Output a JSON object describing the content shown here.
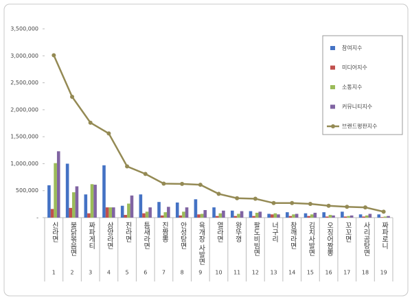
{
  "chart_data": {
    "type": "bar",
    "categories": [
      "신라면",
      "불닭볶음면",
      "짜파게티",
      "삼양라면",
      "진라면",
      "틈새라면",
      "진짬뽕",
      "안성탕면",
      "육개장 사발면",
      "열라면",
      "왕뚜껑",
      "팔도비빔면",
      "너구리",
      "참깨라면",
      "김치사발면",
      "오징어짬뽕",
      "꼬꼬면",
      "사리곰탕면",
      "짜파로니"
    ],
    "ranks": [
      1,
      2,
      3,
      4,
      5,
      6,
      7,
      8,
      9,
      10,
      11,
      12,
      13,
      14,
      15,
      16,
      17,
      18,
      19
    ],
    "series": [
      {
        "name": "참여지수",
        "color": "#4472c4",
        "values": [
          600000,
          1000000,
          430000,
          970000,
          220000,
          430000,
          290000,
          280000,
          340000,
          190000,
          130000,
          120000,
          70000,
          100000,
          80000,
          100000,
          110000,
          60000,
          60000
        ]
      },
      {
        "name": "미디어지수",
        "color": "#c0504d",
        "values": [
          160000,
          180000,
          80000,
          190000,
          50000,
          80000,
          40000,
          40000,
          60000,
          30000,
          30000,
          30000,
          60000,
          30000,
          30000,
          20000,
          20000,
          20000,
          10000
        ]
      },
      {
        "name": "소통지수",
        "color": "#9bbb59",
        "values": [
          1010000,
          470000,
          620000,
          190000,
          260000,
          110000,
          100000,
          110000,
          70000,
          80000,
          70000,
          90000,
          80000,
          60000,
          60000,
          50000,
          30000,
          40000,
          20000
        ]
      },
      {
        "name": "커뮤니티지수",
        "color": "#8064a2",
        "values": [
          1230000,
          580000,
          610000,
          190000,
          410000,
          190000,
          200000,
          190000,
          140000,
          130000,
          120000,
          110000,
          60000,
          70000,
          90000,
          40000,
          40000,
          70000,
          30000
        ]
      },
      {
        "name": "브랜드평판지수",
        "color": "#948a54",
        "type": "line",
        "values": [
          3010000,
          2240000,
          1760000,
          1560000,
          950000,
          810000,
          630000,
          625000,
          610000,
          440000,
          360000,
          350000,
          270000,
          270000,
          255000,
          220000,
          200000,
          190000,
          110000
        ]
      }
    ],
    "ylim": [
      0,
      3500000
    ],
    "yticks": [
      {
        "value": 0,
        "label": "-"
      },
      {
        "value": 500000,
        "label": "500,000"
      },
      {
        "value": 1000000,
        "label": "1,000,000"
      },
      {
        "value": 1500000,
        "label": "1,500,000"
      },
      {
        "value": 2000000,
        "label": "2,000,000"
      },
      {
        "value": 2500000,
        "label": "2,500,000"
      },
      {
        "value": 3000000,
        "label": "3,000,000"
      },
      {
        "value": 3500000,
        "label": "3,500,000"
      }
    ],
    "legend": "right"
  }
}
